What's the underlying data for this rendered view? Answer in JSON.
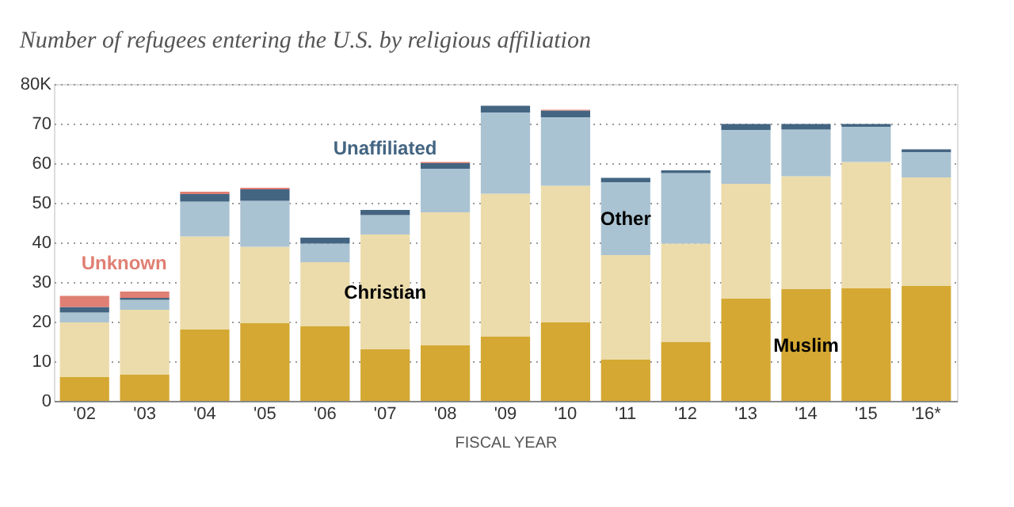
{
  "chart_data": {
    "type": "bar",
    "stacked": true,
    "title": "Number of refugees entering the U.S. by religious affiliation",
    "xlabel": "FISCAL YEAR",
    "categories": [
      "'02",
      "'03",
      "'04",
      "'05",
      "'06",
      "'07",
      "'08",
      "'09",
      "'10",
      "'11",
      "'12",
      "'13",
      "'14",
      "'15",
      "'16*"
    ],
    "series": [
      {
        "name": "Muslim",
        "color": "#d4a832",
        "values": [
          6,
          6.6,
          18,
          19.6,
          18.9,
          13,
          14,
          16.2,
          19.8,
          10.4,
          14.9,
          25.8,
          28.2,
          28.4,
          29
        ]
      },
      {
        "name": "Christian",
        "color": "#ecdcab",
        "values": [
          13.8,
          16.4,
          23.5,
          19.3,
          16.1,
          29,
          33.6,
          36.1,
          34.5,
          26.4,
          24.8,
          29,
          28.5,
          31.9,
          27.4
        ]
      },
      {
        "name": "Other",
        "color": "#aac3d2",
        "values": [
          2.5,
          2.5,
          8.8,
          11.6,
          4.7,
          4.9,
          11,
          20.5,
          17.3,
          18.4,
          17.8,
          13.6,
          11.8,
          8.9,
          6.4
        ]
      },
      {
        "name": "Unaffiliated",
        "color": "#436582",
        "values": [
          1.4,
          0.5,
          1.9,
          2.9,
          1.5,
          1.3,
          1.4,
          1.7,
          1.7,
          1.1,
          0.7,
          1.5,
          1.4,
          0.7,
          0.7
        ]
      },
      {
        "name": "Unknown",
        "color": "#e07f73",
        "values": [
          2.8,
          1.6,
          0.6,
          0.4,
          0,
          0,
          0.3,
          0,
          0.2,
          0,
          0,
          0,
          0,
          0,
          0
        ]
      }
    ],
    "ylim": [
      0,
      80
    ],
    "yticks": [
      0,
      10,
      20,
      30,
      40,
      50,
      60,
      70,
      {
        "value": 80,
        "label": "80K"
      }
    ],
    "grid": "y",
    "legend": false
  }
}
